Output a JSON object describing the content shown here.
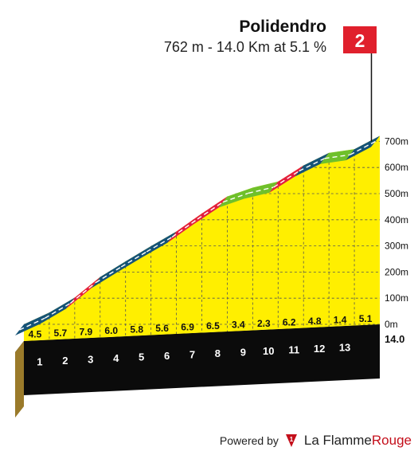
{
  "header": {
    "title": "Polidendro",
    "subtitle": "762 m - 14.0 Km at 5.1 %",
    "flag_label": "2"
  },
  "footer": {
    "powered_by": "Powered by",
    "brand_main": "La Flamme",
    "brand_accent": "Rouge"
  },
  "colors": {
    "fill": "#ffef00",
    "green": "#6fc02b",
    "red": "#e31e3f",
    "blue": "#155377",
    "flag": "#e0202c",
    "base_top": "#0b0b0b",
    "base_side": "#9a7a2a"
  },
  "chart_data": {
    "type": "area",
    "title": "Polidendro",
    "subtitle": "762 m - 14.0 Km at 5.1 %",
    "x": [
      0,
      1,
      2,
      3,
      4,
      5,
      6,
      7,
      8,
      9,
      10,
      11,
      12,
      13,
      14
    ],
    "elevation": [
      0,
      45,
      102,
      181,
      241,
      299,
      355,
      424,
      489,
      523,
      546,
      608,
      656,
      670,
      721
    ],
    "segments": [
      {
        "km": 1,
        "gradient": "4.5",
        "color": "blue"
      },
      {
        "km": 2,
        "gradient": "5.7",
        "color": "blue"
      },
      {
        "km": 3,
        "gradient": "7.9",
        "color": "red"
      },
      {
        "km": 4,
        "gradient": "6.0",
        "color": "blue"
      },
      {
        "km": 5,
        "gradient": "5.8",
        "color": "blue"
      },
      {
        "km": 6,
        "gradient": "5.6",
        "color": "blue"
      },
      {
        "km": 7,
        "gradient": "6.9",
        "color": "red"
      },
      {
        "km": 8,
        "gradient": "6.5",
        "color": "red"
      },
      {
        "km": 9,
        "gradient": "3.4",
        "color": "green"
      },
      {
        "km": 10,
        "gradient": "2.3",
        "color": "green"
      },
      {
        "km": 11,
        "gradient": "6.2",
        "color": "red"
      },
      {
        "km": 12,
        "gradient": "4.8",
        "color": "blue"
      },
      {
        "km": 13,
        "gradient": "1.4",
        "color": "green"
      },
      {
        "km": 14,
        "gradient": "5.1",
        "color": "blue"
      }
    ],
    "km_labels": [
      "1",
      "2",
      "3",
      "4",
      "5",
      "6",
      "7",
      "8",
      "9",
      "10",
      "11",
      "12",
      "13"
    ],
    "end_label": "14.0",
    "y_ticks": [
      {
        "value": 0,
        "label": "0m"
      },
      {
        "value": 100,
        "label": "100m"
      },
      {
        "value": 200,
        "label": "200m"
      },
      {
        "value": 300,
        "label": "300m"
      },
      {
        "value": 400,
        "label": "400m"
      },
      {
        "value": 500,
        "label": "500m"
      },
      {
        "value": 600,
        "label": "600m"
      },
      {
        "value": 700,
        "label": "700m"
      }
    ],
    "ylim": [
      0,
      762
    ],
    "grid": true
  }
}
